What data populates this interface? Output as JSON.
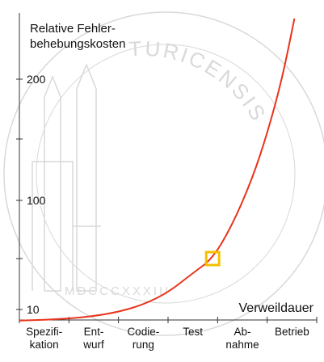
{
  "chart_data": {
    "type": "line",
    "ylabel": [
      "Relative Fehler-",
      "behebungskosten"
    ],
    "xlabel": "Verweildauer",
    "yticks": [
      10,
      100,
      200
    ],
    "ylim": [
      0,
      250
    ],
    "categories": [
      {
        "lines": [
          "Spezifi-",
          "kation"
        ]
      },
      {
        "lines": [
          "Ent-",
          "wurf"
        ]
      },
      {
        "lines": [
          "Codie-",
          "rung"
        ]
      },
      {
        "lines": [
          "Test"
        ]
      },
      {
        "lines": [
          "Ab-",
          "nahme"
        ]
      },
      {
        "lines": [
          "Betrieb"
        ]
      }
    ],
    "series": [
      {
        "color": "#e8341c",
        "points": [
          {
            "x": 0.0,
            "y": 0.8
          },
          {
            "x": 0.5,
            "y": 1.5
          },
          {
            "x": 1.0,
            "y": 2.5
          },
          {
            "x": 1.5,
            "y": 4.5
          },
          {
            "x": 2.0,
            "y": 8
          },
          {
            "x": 2.5,
            "y": 14
          },
          {
            "x": 3.0,
            "y": 24
          },
          {
            "x": 3.5,
            "y": 40
          },
          {
            "x": 3.9,
            "y": 52
          },
          {
            "x": 4.3,
            "y": 80
          },
          {
            "x": 4.7,
            "y": 118
          },
          {
            "x": 5.0,
            "y": 155
          },
          {
            "x": 5.3,
            "y": 200
          },
          {
            "x": 5.55,
            "y": 250
          }
        ]
      }
    ],
    "highlight": {
      "x": 3.9,
      "y": 52,
      "color": "#f5c000"
    },
    "watermark": {
      "text": "TURICENSIS",
      "roman": "MDCCCXXXIII",
      "color": "#d9d9d9"
    }
  }
}
